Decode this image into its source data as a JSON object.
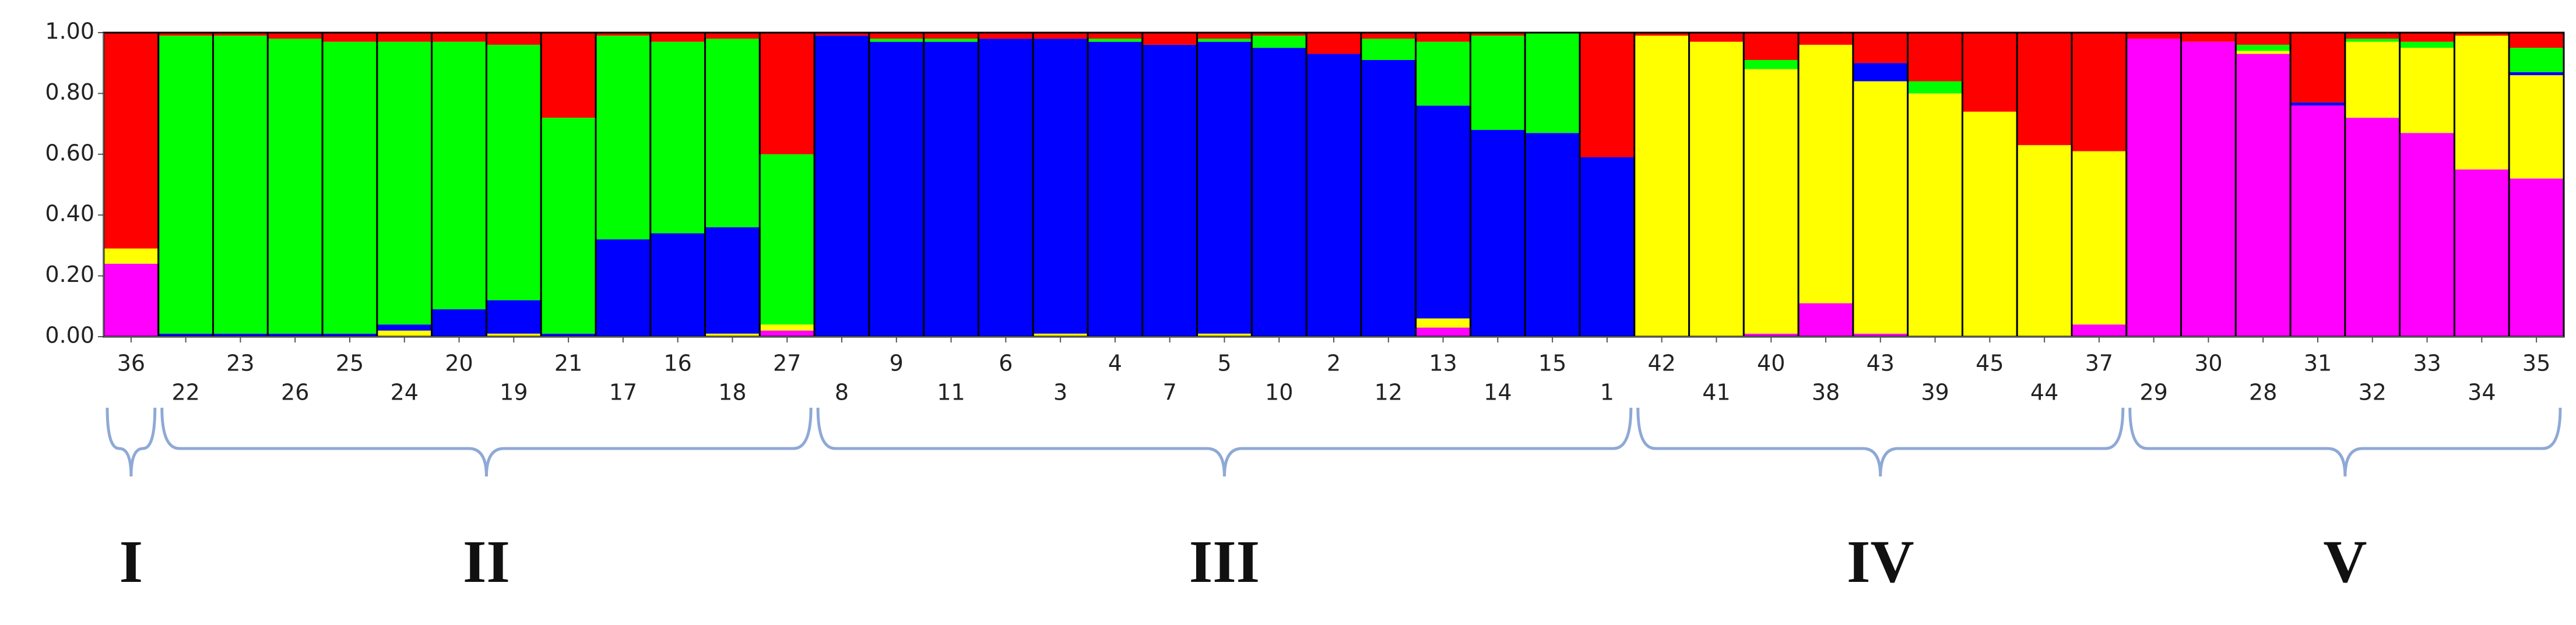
{
  "chart_data": {
    "type": "stacked_bar",
    "categories": [
      "36",
      "22",
      "23",
      "26",
      "25",
      "24",
      "20",
      "19",
      "21",
      "17",
      "16",
      "18",
      "27",
      "8",
      "9",
      "11",
      "6",
      "3",
      "4",
      "7",
      "5",
      "10",
      "2",
      "12",
      "13",
      "14",
      "15",
      "1",
      "42",
      "41",
      "40",
      "38",
      "43",
      "39",
      "45",
      "44",
      "37",
      "29",
      "30",
      "28",
      "31",
      "32",
      "33",
      "34",
      "35"
    ],
    "series": [
      {
        "color": "#ff00ff",
        "values": [
          0.24,
          0,
          0,
          0,
          0,
          0,
          0,
          0,
          0,
          0,
          0,
          0,
          0.02,
          0,
          0,
          0,
          0,
          0,
          0,
          0,
          0,
          0,
          0,
          0,
          0.03,
          0,
          0,
          0,
          0,
          0,
          0.01,
          0.11,
          0.01,
          0,
          0,
          0,
          0.04,
          0.98,
          0.97,
          0.93,
          0.76,
          0.72,
          0.67,
          0.55,
          0.52
        ]
      },
      {
        "color": "#ffff00",
        "values": [
          0.05,
          0,
          0,
          0,
          0,
          0.02,
          0,
          0.01,
          0,
          0,
          0,
          0.01,
          0.02,
          0,
          0,
          0,
          0,
          0.01,
          0,
          0,
          0.01,
          0,
          0,
          0,
          0.03,
          0,
          0,
          0,
          0.99,
          0.97,
          0.87,
          0.85,
          0.83,
          0.8,
          0.74,
          0.63,
          0.57,
          0,
          0,
          0.01,
          0,
          0.25,
          0.28,
          0.44,
          0.34
        ]
      },
      {
        "color": "#0000ff",
        "values": [
          0,
          0.01,
          0.01,
          0.01,
          0.01,
          0.02,
          0.09,
          0.11,
          0.01,
          0.32,
          0.34,
          0.35,
          0,
          0.99,
          0.97,
          0.97,
          0.98,
          0.97,
          0.97,
          0.96,
          0.96,
          0.95,
          0.93,
          0.91,
          0.7,
          0.68,
          0.67,
          0.59,
          0,
          0,
          0,
          0,
          0.06,
          0,
          0,
          0,
          0,
          0,
          0,
          0,
          0.01,
          0,
          0,
          0,
          0.01
        ]
      },
      {
        "color": "#00ff00",
        "values": [
          0,
          0.98,
          0.98,
          0.97,
          0.96,
          0.93,
          0.88,
          0.84,
          0.71,
          0.67,
          0.63,
          0.62,
          0.56,
          0,
          0.01,
          0.01,
          0,
          0,
          0.01,
          0,
          0.01,
          0.04,
          0,
          0.07,
          0.21,
          0.31,
          0.33,
          0,
          0,
          0,
          0.03,
          0,
          0,
          0.04,
          0,
          0,
          0,
          0,
          0,
          0.02,
          0,
          0.01,
          0.02,
          0,
          0.08
        ]
      },
      {
        "color": "#ff0000",
        "values": [
          0.71,
          0.01,
          0.01,
          0.02,
          0.03,
          0.03,
          0.03,
          0.04,
          0.28,
          0.01,
          0.03,
          0.02,
          0.4,
          0.01,
          0.02,
          0.02,
          0.02,
          0.02,
          0.02,
          0.04,
          0.02,
          0.01,
          0.07,
          0.02,
          0.03,
          0.01,
          0,
          0.41,
          0.01,
          0.03,
          0.09,
          0.04,
          0.1,
          0.16,
          0.26,
          0.37,
          0.39,
          0.02,
          0.03,
          0.04,
          0.23,
          0.02,
          0.03,
          0.01,
          0.05
        ]
      }
    ],
    "ylim": [
      0,
      1
    ],
    "yticks": [
      {
        "value": 0,
        "label": "0.00"
      },
      {
        "value": 0.2,
        "label": "0.20"
      },
      {
        "value": 0.4,
        "label": "0.40"
      },
      {
        "value": 0.6,
        "label": "0.60"
      },
      {
        "value": 0.8,
        "label": "0.80"
      },
      {
        "value": 1,
        "label": "1.00"
      }
    ],
    "groups": [
      {
        "label": "I",
        "count": 1
      },
      {
        "label": "II",
        "count": 12
      },
      {
        "label": "III",
        "count": 15
      },
      {
        "label": "IV",
        "count": 9
      },
      {
        "label": "V",
        "count": 8
      }
    ]
  }
}
